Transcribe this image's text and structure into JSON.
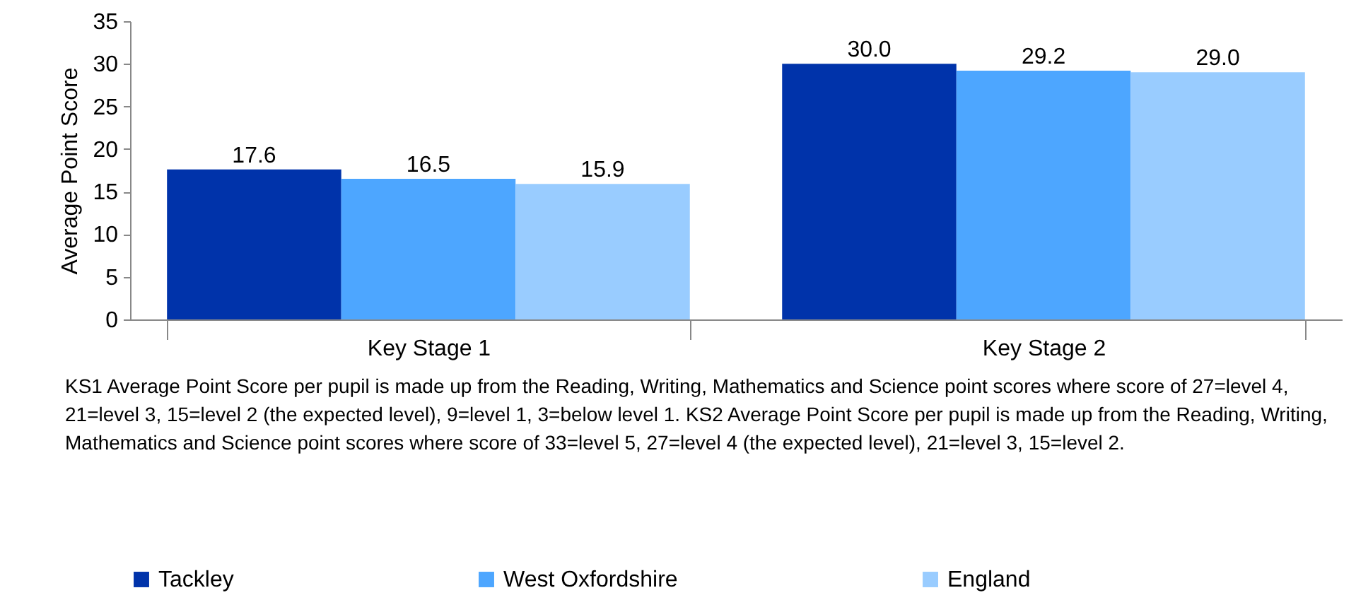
{
  "chart_data": {
    "type": "bar",
    "ylabel": "Average Point Score",
    "categories": [
      "Key Stage 1",
      "Key Stage 2"
    ],
    "series": [
      {
        "name": "Tackley",
        "color": "#0033aa",
        "values": [
          17.6,
          30.0
        ]
      },
      {
        "name": "West Oxfordshire",
        "color": "#4da6ff",
        "values": [
          16.5,
          29.2
        ]
      },
      {
        "name": "England",
        "color": "#99ccff",
        "values": [
          15.9,
          29.0
        ]
      }
    ],
    "value_labels": [
      [
        "17.6",
        "30.0"
      ],
      [
        "16.5",
        "29.2"
      ],
      [
        "15.9",
        "29.0"
      ]
    ],
    "ylim": [
      0,
      35
    ],
    "yticks": [
      0,
      5,
      10,
      15,
      20,
      25,
      30,
      35
    ],
    "grid": false,
    "legend": "bottom",
    "annotations": [
      "KS1 Average Point Score per pupil is made up from the Reading, Writing, Mathematics and Science point scores where score of 27=level 4, 21=level 3, 15=level 2 (the expected level), 9=level 1, 3=below level 1. KS2 Average Point Score per pupil is made up from the Reading, Writing, Mathematics and Science point scores where score of 33=level 5, 27=level 4 (the expected level), 21=level 3, 15=level 2."
    ]
  }
}
